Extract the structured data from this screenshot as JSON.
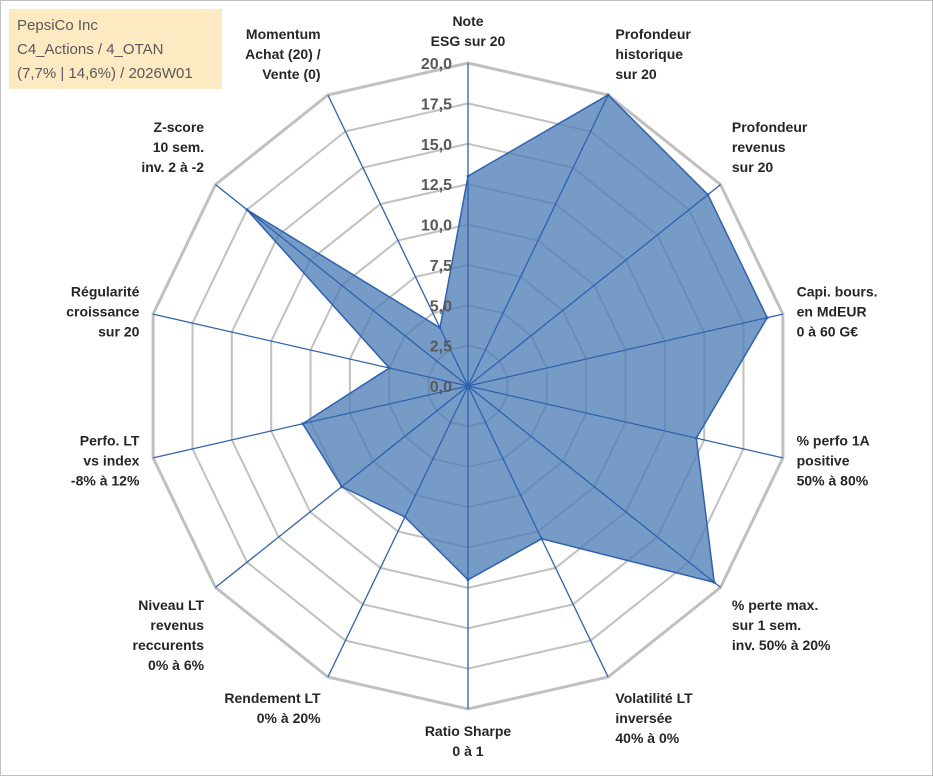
{
  "info": {
    "company": "PepsiCo Inc",
    "portfolio": "C4_Actions / 4_OTAN",
    "stats": "(7,7% | 14,6%) / 2026W01"
  },
  "colors": {
    "fill": "#4f7fb7",
    "line": "#2f62ad",
    "grid": "#c0c0c0",
    "box": "#fde9c2"
  },
  "chart_data": {
    "type": "radar",
    "title": "",
    "rmin": 0,
    "rmax": 20,
    "ticks": [
      "0,0",
      "2,5",
      "5,0",
      "7,5",
      "10,0",
      "12,5",
      "15,0",
      "17,5",
      "20,0"
    ],
    "axes": [
      {
        "label": [
          "Note",
          "ESG sur 20"
        ],
        "value": 13
      },
      {
        "label": [
          "Profondeur",
          "historique",
          "sur 20"
        ],
        "value": 20
      },
      {
        "label": [
          "Profondeur",
          "revenus",
          "sur 20"
        ],
        "value": 19
      },
      {
        "label": [
          "Capi. bours.",
          "en MdEUR",
          "0 à 60 G€"
        ],
        "value": 19
      },
      {
        "label": [
          "% perfo 1A",
          "positive",
          "50% à 80%"
        ],
        "value": 14.5
      },
      {
        "label": [
          "% perte max.",
          "sur 1 sem.",
          "inv. 50% à 20%"
        ],
        "value": 19.5
      },
      {
        "label": [
          "Volatilité LT",
          "inversée",
          "40% à 0%"
        ],
        "value": 10.5
      },
      {
        "label": [
          "Ratio Sharpe",
          "0 à 1"
        ],
        "value": 12
      },
      {
        "label": [
          "Rendement LT",
          "0% à 20%"
        ],
        "value": 9
      },
      {
        "label": [
          "Niveau LT",
          "revenus",
          "reccurents",
          "0% à 6%"
        ],
        "value": 10
      },
      {
        "label": [
          "Perfo. LT",
          "vs index",
          "-8% à 12%"
        ],
        "value": 10.5
      },
      {
        "label": [
          "Régularité",
          "croissance",
          "sur 20"
        ],
        "value": 5
      },
      {
        "label": [
          "Z-score",
          "10 sem.",
          "inv. 2 à -2"
        ],
        "value": 17.5
      },
      {
        "label": [
          "Momentum",
          "Achat (20) /",
          "Vente (0)"
        ],
        "value": 4
      }
    ]
  }
}
